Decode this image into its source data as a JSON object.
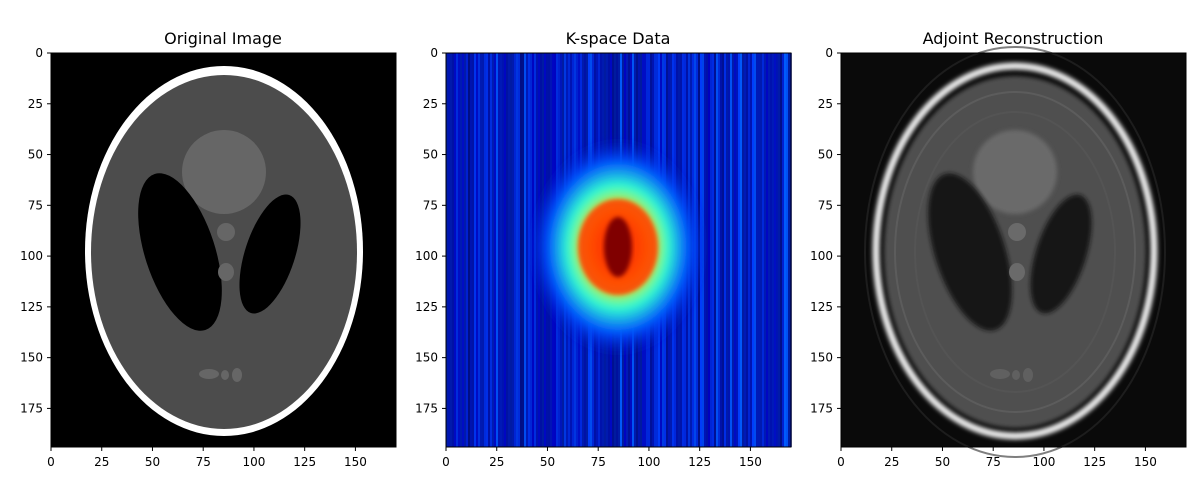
{
  "chart_data": [
    {
      "type": "heatmap",
      "title": "Original Image",
      "colormap": "gray",
      "image_shape": [
        194,
        170
      ],
      "xlim": [
        0,
        170
      ],
      "ylim": [
        194,
        0
      ],
      "xticks": [
        0,
        25,
        50,
        75,
        100,
        125,
        150
      ],
      "yticks": [
        0,
        25,
        50,
        75,
        100,
        125,
        150,
        175
      ],
      "content": "Shepp-Logan phantom: bright elliptical skull ring, gray interior, two dark tilted ellipses, lighter central blob and small spots"
    },
    {
      "type": "heatmap",
      "title": "K-space Data",
      "colormap": "jet",
      "image_shape": [
        194,
        170
      ],
      "xlim": [
        0,
        170
      ],
      "ylim": [
        194,
        0
      ],
      "xticks": [
        0,
        25,
        50,
        75,
        100,
        125,
        150
      ],
      "yticks": [
        0,
        25,
        50,
        75,
        100,
        125,
        150,
        175
      ],
      "content": "Log-magnitude k-space: peak energy at center (~85, 97), blue background with vertical stripes"
    },
    {
      "type": "heatmap",
      "title": "Adjoint Reconstruction",
      "colormap": "gray",
      "image_shape": [
        194,
        170
      ],
      "xlim": [
        0,
        170
      ],
      "ylim": [
        194,
        0
      ],
      "xticks": [
        0,
        25,
        50,
        75,
        100,
        125,
        150
      ],
      "yticks": [
        0,
        25,
        50,
        75,
        100,
        125,
        150,
        175
      ],
      "content": "Blurred phantom reconstruction with ringing / aliasing artifacts"
    }
  ],
  "colors": {
    "background": "#000000",
    "skull": "#ffffff",
    "brain": "#4c4c4c",
    "dark_ellipse": "#000000",
    "center_blob": "#666666",
    "kspace_bg": "#0018c8",
    "kspace_peak": "#800000"
  }
}
